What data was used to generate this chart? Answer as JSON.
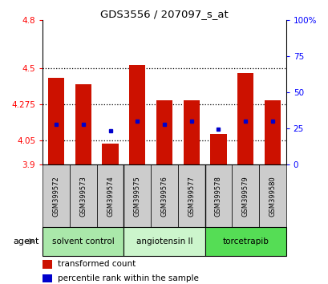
{
  "title": "GDS3556 / 207097_s_at",
  "samples": [
    "GSM399572",
    "GSM399573",
    "GSM399574",
    "GSM399575",
    "GSM399576",
    "GSM399577",
    "GSM399578",
    "GSM399579",
    "GSM399580"
  ],
  "red_values": [
    4.44,
    4.4,
    4.03,
    4.52,
    4.3,
    4.3,
    4.09,
    4.47,
    4.3
  ],
  "blue_values": [
    4.15,
    4.15,
    4.11,
    4.17,
    4.15,
    4.17,
    4.12,
    4.17,
    4.17
  ],
  "ylim": [
    3.9,
    4.8
  ],
  "yticks": [
    3.9,
    4.05,
    4.275,
    4.5,
    4.8
  ],
  "ytick_labels": [
    "3.9",
    "4.05",
    "4.275",
    "4.5",
    "4.8"
  ],
  "right_yticks": [
    0,
    25,
    50,
    75,
    100
  ],
  "right_ytick_labels": [
    "0",
    "25",
    "50",
    "75",
    "100%"
  ],
  "dotted_lines": [
    4.05,
    4.275,
    4.5
  ],
  "groups": [
    {
      "label": "solvent control",
      "start": 0,
      "end": 3,
      "color": "#aae8aa"
    },
    {
      "label": "angiotensin II",
      "start": 3,
      "end": 6,
      "color": "#ccf5cc"
    },
    {
      "label": "torcetrapib",
      "start": 6,
      "end": 9,
      "color": "#55dd55"
    }
  ],
  "bar_color": "#cc1100",
  "blue_color": "#0000cc",
  "bar_width": 0.6,
  "tick_bg_color": "#cccccc",
  "legend_red_label": "transformed count",
  "legend_blue_label": "percentile rank within the sample",
  "agent_label": "agent"
}
